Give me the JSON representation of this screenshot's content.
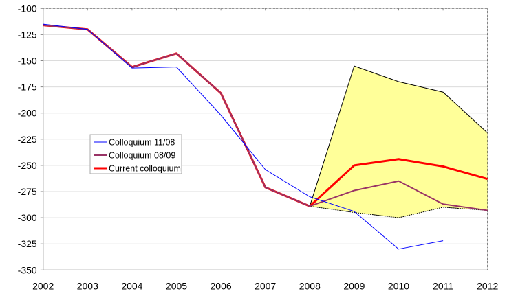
{
  "chart_data": {
    "type": "line",
    "title": "",
    "xlabel": "",
    "ylabel": "",
    "x": [
      2002,
      2003,
      2004,
      2005,
      2006,
      2007,
      2008,
      2009,
      2010,
      2011,
      2012
    ],
    "ylim": [
      -350,
      -100
    ],
    "yticks": [
      -100,
      -125,
      -150,
      -175,
      -200,
      -225,
      -250,
      -275,
      -300,
      -325,
      -350
    ],
    "grid": true,
    "legend_position": "center-left",
    "band": {
      "x": [
        2008,
        2009,
        2010,
        2011,
        2012
      ],
      "upper": [
        -289,
        -155,
        -170,
        -180,
        -219
      ],
      "lower": [
        -289,
        -295,
        -300,
        -290,
        -293
      ],
      "fill": "#ffff99",
      "stroke": "#000000"
    },
    "series": [
      {
        "name": "Current colloquium",
        "color": "#ff0000",
        "width": 3,
        "values": [
          -116,
          -120,
          -156,
          -143,
          -181,
          -271,
          -289,
          -250,
          -244,
          -251,
          -263
        ]
      },
      {
        "name": "Colloquium 08/09",
        "color": "#993366",
        "width": 2,
        "values": [
          -116,
          -120,
          -156,
          -143,
          -181,
          -271,
          -289,
          -274,
          -265,
          -287,
          -293
        ]
      },
      {
        "name": "Colloquium 11/08",
        "color": "#0000ff",
        "width": 1,
        "values": [
          -115,
          -120,
          -157,
          -156,
          -202,
          -254,
          -280,
          -294,
          -330,
          -322,
          null
        ]
      }
    ],
    "legend_order": [
      "Colloquium 11/08",
      "Colloquium 08/09",
      "Current colloquium"
    ]
  }
}
